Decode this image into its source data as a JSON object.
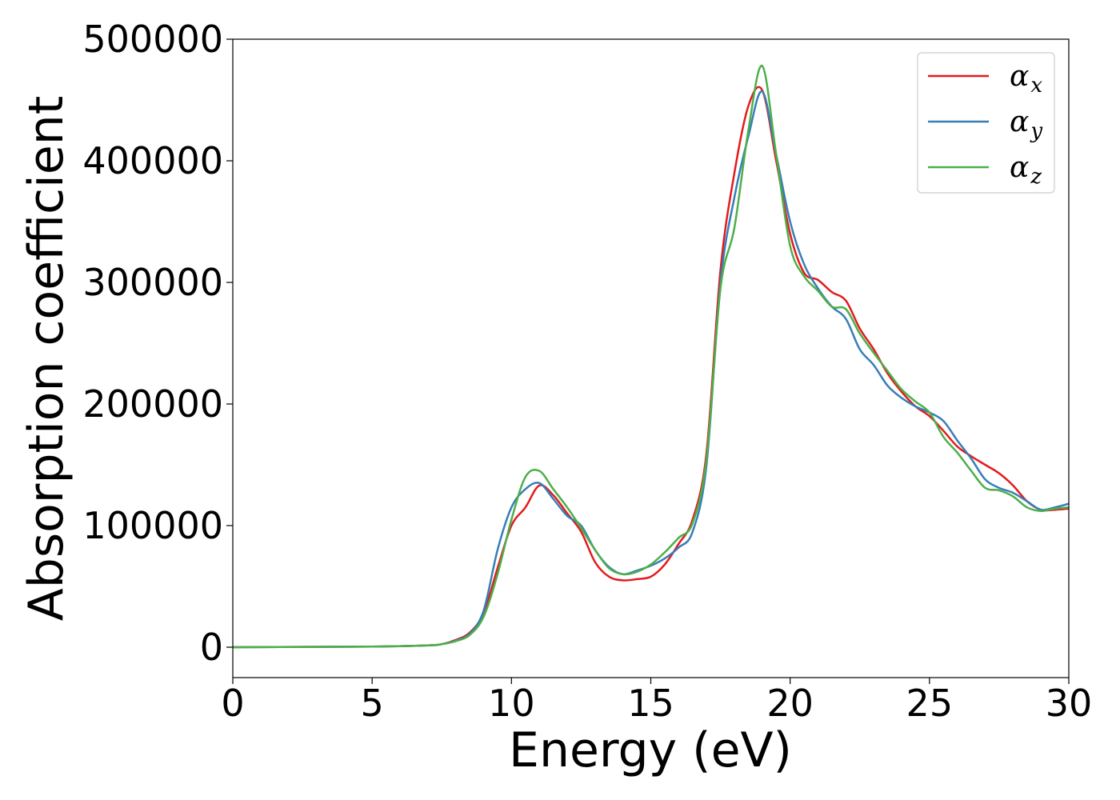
{
  "chart_data": {
    "type": "line",
    "xlabel": "Energy (eV)",
    "ylabel": "Absorption coefficient",
    "xlim": [
      0,
      30
    ],
    "ylim": [
      -25000,
      500000
    ],
    "xticks": [
      0,
      5,
      10,
      15,
      20,
      25,
      30
    ],
    "yticks": [
      0,
      100000,
      200000,
      300000,
      400000,
      500000
    ],
    "grid": false,
    "legend_position": "top-right",
    "x": [
      0,
      5,
      7,
      7.5,
      8,
      8.5,
      9,
      9.5,
      10,
      10.5,
      11,
      11.5,
      12,
      12.5,
      13,
      13.5,
      14,
      14.5,
      15,
      15.5,
      16,
      16.5,
      17,
      17.5,
      18,
      18.5,
      19,
      19.5,
      20,
      20.5,
      21,
      21.5,
      22,
      22.5,
      23,
      23.5,
      24,
      24.5,
      25,
      25.5,
      26,
      26.5,
      27,
      27.5,
      28,
      28.5,
      29,
      29.5,
      30
    ],
    "series": [
      {
        "name": "α_x",
        "symbol": "α",
        "subscript": "x",
        "color": "#e41a1c",
        "values": [
          0,
          500,
          1500,
          2500,
          6000,
          12000,
          28000,
          65000,
          100000,
          115000,
          133000,
          125000,
          110000,
          95000,
          70000,
          58000,
          55000,
          56000,
          58000,
          68000,
          85000,
          105000,
          160000,
          310000,
          390000,
          445000,
          458000,
          400000,
          340000,
          308000,
          302000,
          292000,
          285000,
          262000,
          245000,
          225000,
          210000,
          198000,
          190000,
          178000,
          165000,
          157000,
          150000,
          143000,
          133000,
          120000,
          113000,
          113000,
          114000
        ]
      },
      {
        "name": "α_y",
        "symbol": "α",
        "subscript": "y",
        "color": "#377eb8",
        "values": [
          0,
          500,
          1500,
          2500,
          5500,
          11000,
          30000,
          80000,
          115000,
          130000,
          135000,
          122000,
          108000,
          100000,
          80000,
          66000,
          60000,
          63000,
          67000,
          73000,
          82000,
          95000,
          150000,
          300000,
          370000,
          420000,
          457000,
          405000,
          350000,
          315000,
          295000,
          280000,
          270000,
          245000,
          232000,
          215000,
          205000,
          198000,
          193000,
          186000,
          170000,
          155000,
          138000,
          131000,
          127000,
          120000,
          113000,
          115000,
          118000
        ]
      },
      {
        "name": "α_z",
        "symbol": "α",
        "subscript": "z",
        "color": "#4daf4a",
        "values": [
          0,
          500,
          1500,
          2500,
          5000,
          10000,
          25000,
          60000,
          105000,
          140000,
          145000,
          130000,
          115000,
          98000,
          80000,
          65000,
          60000,
          62000,
          68000,
          78000,
          90000,
          102000,
          155000,
          295000,
          345000,
          425000,
          478000,
          405000,
          330000,
          305000,
          293000,
          280000,
          278000,
          258000,
          242000,
          227000,
          212000,
          202000,
          193000,
          173000,
          160000,
          145000,
          131000,
          129000,
          124000,
          115000,
          112000,
          114000,
          115000
        ]
      }
    ]
  }
}
